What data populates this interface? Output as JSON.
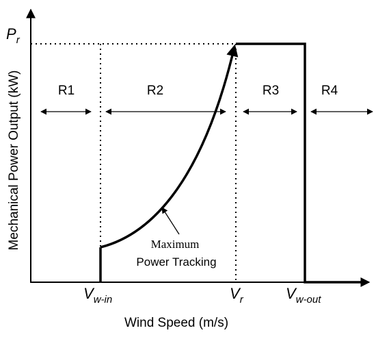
{
  "chart_data": {
    "type": "line",
    "xlabel": "Wind Speed (m/s)",
    "ylabel": "Mechanical Power Output (kW)",
    "x_ticks": [
      {
        "main": "V",
        "sub": "w-in"
      },
      {
        "main": "V",
        "sub": "r"
      },
      {
        "main": "V",
        "sub": "w-out"
      }
    ],
    "y_ticks": [
      {
        "main": "P",
        "sub": "r"
      }
    ],
    "regions": [
      "R1",
      "R2",
      "R3",
      "R4"
    ],
    "annotation": {
      "line1": "Maximum",
      "line2": "Power Tracking"
    },
    "series": [
      {
        "points": [
          {
            "x": "V_w-in",
            "y": 0
          },
          {
            "x": "V_w-in",
            "y": 0.15
          },
          {
            "x": "V_r",
            "y": 1
          },
          {
            "x": "V_w-out",
            "y": 1
          },
          {
            "x": "V_w-out",
            "y": 0
          }
        ]
      }
    ],
    "color": "#000000"
  }
}
